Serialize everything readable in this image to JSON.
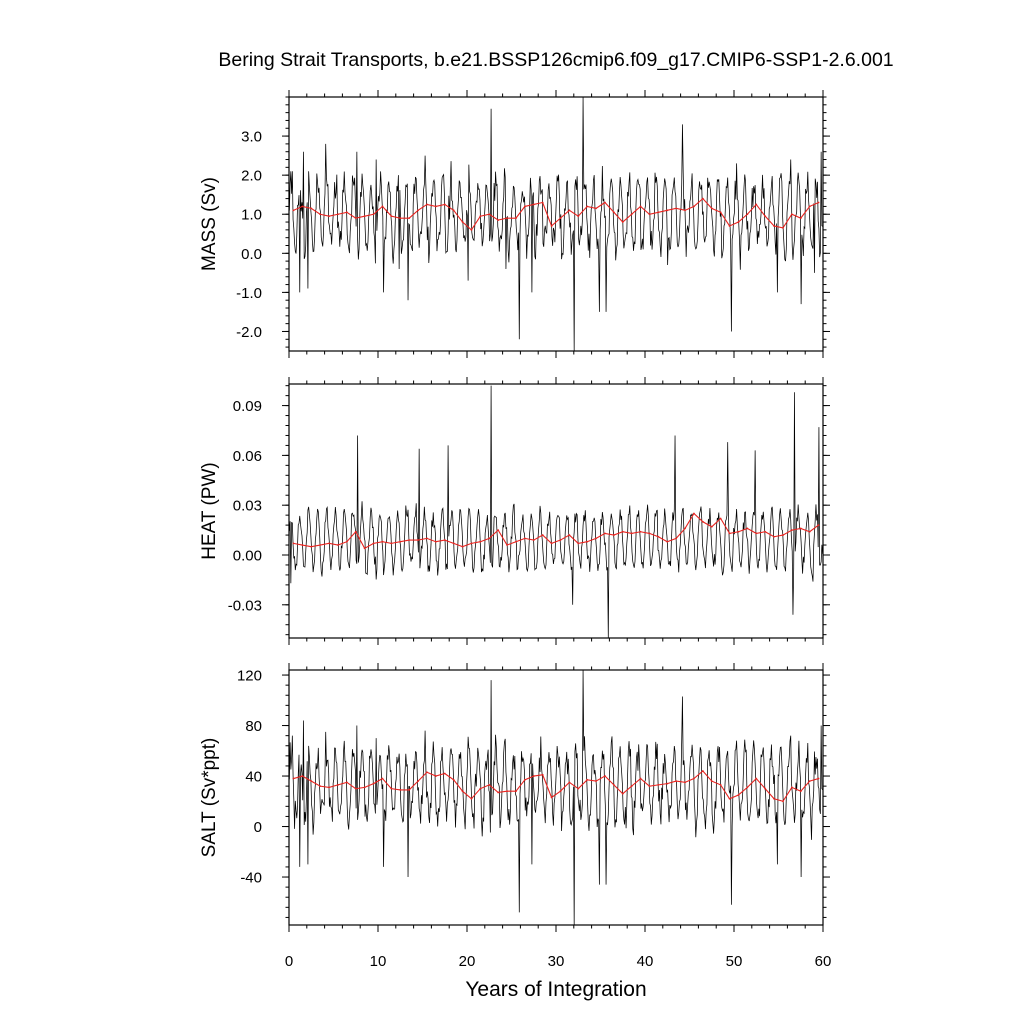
{
  "title": "Bering Strait Transports, b.e21.BSSP126cmip6.f09_g17.CMIP6-SSP1-2.6.001",
  "xlabel": "Years of Integration",
  "colors": {
    "monthly": "#000000",
    "annual": "#e8231f"
  },
  "chart_data": [
    {
      "type": "line",
      "ylabel": "MASS (Sv)",
      "xlim": [
        0,
        60
      ],
      "ylim": [
        -2.5,
        4.0
      ],
      "xticks": [
        0,
        10,
        20,
        30,
        40,
        50,
        60
      ],
      "yticks": [
        -2.0,
        -1.0,
        0.0,
        1.0,
        2.0,
        3.0
      ],
      "ytick_labels": [
        "-2.0",
        "-1.0",
        "0.0",
        "1.0",
        "2.0",
        "3.0"
      ],
      "monthly_stats": {
        "mean": 1.0,
        "amplitude": 0.85,
        "noise": 0.45
      },
      "spikes": [
        [
          0.4,
          2.1
        ],
        [
          1.2,
          -1.0
        ],
        [
          1.6,
          2.6
        ],
        [
          2.1,
          -0.9
        ],
        [
          4.1,
          2.8
        ],
        [
          7.6,
          2.6
        ],
        [
          9.8,
          2.4
        ],
        [
          10.6,
          -1.0
        ],
        [
          12.4,
          -0.4
        ],
        [
          13.4,
          -1.2
        ],
        [
          15.3,
          2.5
        ],
        [
          20.1,
          -0.7
        ],
        [
          22.7,
          3.7
        ],
        [
          24.4,
          -0.4
        ],
        [
          25.9,
          -2.2
        ],
        [
          27.3,
          -1.0
        ],
        [
          32.0,
          -2.5
        ],
        [
          33.0,
          4.0
        ],
        [
          34.9,
          -1.5
        ],
        [
          35.6,
          -1.5
        ],
        [
          42.5,
          -0.3
        ],
        [
          44.2,
          3.3
        ],
        [
          49.7,
          -2.0
        ],
        [
          50.3,
          2.3
        ],
        [
          54.9,
          -1.0
        ],
        [
          56.4,
          2.4
        ],
        [
          57.5,
          -1.3
        ],
        [
          59.0,
          -0.5
        ],
        [
          59.8,
          2.6
        ]
      ],
      "series": [
        {
          "name": "",
          "role": "annual",
          "x": [
            0.5,
            1.5,
            2.5,
            3.5,
            4.5,
            5.5,
            6.5,
            7.5,
            8.5,
            9.5,
            10.5,
            11.5,
            12.5,
            13.5,
            14.5,
            15.5,
            16.5,
            17.5,
            18.5,
            19.5,
            20.5,
            21.5,
            22.5,
            23.5,
            24.5,
            25.5,
            26.5,
            27.5,
            28.5,
            29.5,
            30.5,
            31.5,
            32.5,
            33.5,
            34.5,
            35.5,
            36.5,
            37.5,
            38.5,
            39.5,
            40.5,
            41.5,
            42.5,
            43.5,
            44.5,
            45.5,
            46.5,
            47.5,
            48.5,
            49.5,
            50.5,
            51.5,
            52.5,
            53.5,
            54.5,
            55.5,
            56.5,
            57.5,
            58.5,
            59.5
          ],
          "values": [
            1.1,
            1.2,
            1.15,
            1.0,
            0.95,
            1.0,
            1.05,
            0.9,
            0.95,
            1.0,
            1.2,
            0.95,
            0.9,
            0.9,
            1.1,
            1.25,
            1.2,
            1.25,
            1.1,
            0.8,
            0.6,
            0.95,
            1.0,
            0.85,
            0.9,
            0.9,
            1.2,
            1.25,
            1.3,
            0.7,
            0.9,
            1.1,
            0.95,
            1.2,
            1.15,
            1.3,
            1.05,
            0.8,
            1.0,
            1.2,
            1.0,
            1.05,
            1.1,
            1.15,
            1.1,
            1.2,
            1.4,
            1.15,
            1.05,
            0.7,
            0.8,
            1.0,
            1.25,
            0.95,
            0.7,
            0.65,
            1.0,
            0.9,
            1.2,
            1.3
          ]
        }
      ]
    },
    {
      "type": "line",
      "ylabel": "HEAT (PW)",
      "xlim": [
        0,
        60
      ],
      "ylim": [
        -0.05,
        0.103
      ],
      "xticks": [
        0,
        10,
        20,
        30,
        40,
        50,
        60
      ],
      "yticks": [
        -0.03,
        0.0,
        0.03,
        0.06,
        0.09
      ],
      "ytick_labels": [
        "-0.03",
        "0.00",
        "0.03",
        "0.06",
        "0.09"
      ],
      "monthly_stats": {
        "mean": 0.009,
        "amplitude": 0.017,
        "noise": 0.006
      },
      "spikes": [
        [
          0.2,
          -0.017
        ],
        [
          7.7,
          0.072
        ],
        [
          14.6,
          0.064
        ],
        [
          17.9,
          0.066
        ],
        [
          22.7,
          0.102
        ],
        [
          31.9,
          -0.03
        ],
        [
          35.9,
          -0.05
        ],
        [
          43.4,
          0.072
        ],
        [
          49.3,
          0.068
        ],
        [
          52.4,
          0.063
        ],
        [
          56.6,
          -0.036
        ],
        [
          56.8,
          0.098
        ],
        [
          58.9,
          -0.016
        ],
        [
          59.5,
          0.077
        ]
      ],
      "series": [
        {
          "name": "",
          "role": "annual",
          "x": [
            0.5,
            1.5,
            2.5,
            3.5,
            4.5,
            5.5,
            6.5,
            7.5,
            8.5,
            9.5,
            10.5,
            11.5,
            12.5,
            13.5,
            14.5,
            15.5,
            16.5,
            17.5,
            18.5,
            19.5,
            20.5,
            21.5,
            22.5,
            23.5,
            24.5,
            25.5,
            26.5,
            27.5,
            28.5,
            29.5,
            30.5,
            31.5,
            32.5,
            33.5,
            34.5,
            35.5,
            36.5,
            37.5,
            38.5,
            39.5,
            40.5,
            41.5,
            42.5,
            43.5,
            44.5,
            45.5,
            46.5,
            47.5,
            48.5,
            49.5,
            50.5,
            51.5,
            52.5,
            53.5,
            54.5,
            55.5,
            56.5,
            57.5,
            58.5,
            59.5
          ],
          "values": [
            0.007,
            0.006,
            0.005,
            0.006,
            0.007,
            0.006,
            0.008,
            0.014,
            0.004,
            0.007,
            0.008,
            0.007,
            0.008,
            0.009,
            0.009,
            0.01,
            0.008,
            0.009,
            0.007,
            0.005,
            0.007,
            0.008,
            0.01,
            0.015,
            0.006,
            0.008,
            0.01,
            0.009,
            0.012,
            0.007,
            0.009,
            0.012,
            0.007,
            0.008,
            0.01,
            0.013,
            0.012,
            0.014,
            0.013,
            0.014,
            0.013,
            0.011,
            0.008,
            0.01,
            0.016,
            0.025,
            0.02,
            0.017,
            0.022,
            0.013,
            0.014,
            0.016,
            0.013,
            0.014,
            0.011,
            0.012,
            0.015,
            0.016,
            0.014,
            0.018
          ]
        }
      ]
    },
    {
      "type": "line",
      "ylabel": "SALT (Sv*ppt)",
      "xlim": [
        0,
        60
      ],
      "ylim": [
        -78,
        124
      ],
      "xticks": [
        0,
        10,
        20,
        30,
        40,
        50,
        60
      ],
      "yticks": [
        -40,
        0,
        40,
        80,
        120
      ],
      "ytick_labels": [
        "-40",
        "0",
        "40",
        "80",
        "120"
      ],
      "monthly_stats": {
        "mean": 33,
        "amplitude": 27,
        "noise": 14
      },
      "spikes": [
        [
          0.4,
          72
        ],
        [
          1.2,
          -32
        ],
        [
          1.6,
          84
        ],
        [
          2.1,
          -30
        ],
        [
          4.1,
          75
        ],
        [
          7.6,
          80
        ],
        [
          9.8,
          70
        ],
        [
          10.6,
          -32
        ],
        [
          13.4,
          -40
        ],
        [
          15.3,
          76
        ],
        [
          22.7,
          116
        ],
        [
          25.9,
          -68
        ],
        [
          27.3,
          -30
        ],
        [
          32.0,
          -78
        ],
        [
          33.0,
          124
        ],
        [
          34.9,
          -46
        ],
        [
          35.6,
          -46
        ],
        [
          44.2,
          103
        ],
        [
          49.7,
          -62
        ],
        [
          50.3,
          68
        ],
        [
          54.9,
          -30
        ],
        [
          56.4,
          72
        ],
        [
          57.5,
          -40
        ],
        [
          59.8,
          80
        ]
      ],
      "series": [
        {
          "name": "",
          "role": "annual",
          "x": [
            0.5,
            1.5,
            2.5,
            3.5,
            4.5,
            5.5,
            6.5,
            7.5,
            8.5,
            9.5,
            10.5,
            11.5,
            12.5,
            13.5,
            14.5,
            15.5,
            16.5,
            17.5,
            18.5,
            19.5,
            20.5,
            21.5,
            22.5,
            23.5,
            24.5,
            25.5,
            26.5,
            27.5,
            28.5,
            29.5,
            30.5,
            31.5,
            32.5,
            33.5,
            34.5,
            35.5,
            36.5,
            37.5,
            38.5,
            39.5,
            40.5,
            41.5,
            42.5,
            43.5,
            44.5,
            45.5,
            46.5,
            47.5,
            48.5,
            49.5,
            50.5,
            51.5,
            52.5,
            53.5,
            54.5,
            55.5,
            56.5,
            57.5,
            58.5,
            59.5
          ],
          "values": [
            38,
            40,
            36,
            32,
            31,
            33,
            35,
            30,
            31,
            34,
            38,
            30,
            29,
            29,
            36,
            43,
            40,
            42,
            37,
            28,
            22,
            30,
            33,
            27,
            28,
            28,
            37,
            40,
            41,
            23,
            28,
            35,
            30,
            37,
            36,
            40,
            33,
            26,
            32,
            38,
            32,
            33,
            34,
            36,
            35,
            38,
            44,
            36,
            33,
            22,
            25,
            31,
            38,
            30,
            22,
            20,
            31,
            28,
            36,
            38
          ]
        }
      ]
    }
  ]
}
